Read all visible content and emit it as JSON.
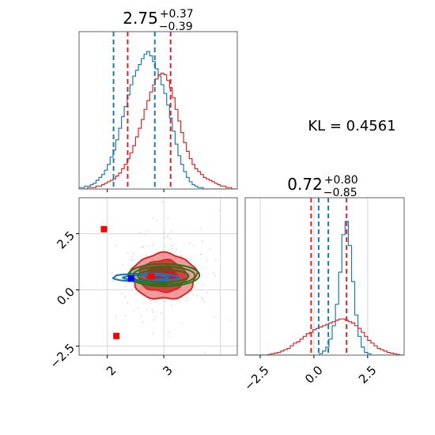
{
  "chart_data": [
    {
      "panel": "marginal-top",
      "type": "histogram",
      "title": {
        "value": "2.75",
        "upper": "+0.37",
        "lower": "−0.39"
      },
      "xlim": [
        1.5,
        4.3
      ],
      "colors": {
        "blue": "#1f77b4",
        "red": "#d62728"
      },
      "bins_x0": 1.5,
      "bin_width": 0.05,
      "series": [
        {
          "color": "blue",
          "counts": [
            0.01,
            0.01,
            0.02,
            0.02,
            0.03,
            0.04,
            0.06,
            0.08,
            0.1,
            0.13,
            0.17,
            0.22,
            0.27,
            0.34,
            0.42,
            0.5,
            0.57,
            0.65,
            0.72,
            0.78,
            0.82,
            0.86,
            0.9,
            0.93,
            0.95,
            0.92,
            0.88,
            0.83,
            0.78,
            0.72,
            0.66,
            0.58,
            0.49,
            0.4,
            0.31,
            0.23,
            0.17,
            0.12,
            0.08,
            0.05,
            0.03,
            0.02,
            0.01,
            0.01,
            0.0,
            0.0,
            0.0,
            0.0,
            0.0,
            0.0,
            0.0,
            0.0,
            0.0,
            0.0,
            0.0,
            0.0
          ]
        },
        {
          "color": "red",
          "counts": [
            0.0,
            0.0,
            0.0,
            0.01,
            0.01,
            0.01,
            0.02,
            0.02,
            0.03,
            0.04,
            0.05,
            0.06,
            0.07,
            0.09,
            0.11,
            0.14,
            0.17,
            0.21,
            0.25,
            0.3,
            0.36,
            0.42,
            0.48,
            0.55,
            0.61,
            0.67,
            0.72,
            0.76,
            0.79,
            0.8,
            0.79,
            0.75,
            0.7,
            0.63,
            0.55,
            0.47,
            0.39,
            0.32,
            0.26,
            0.21,
            0.17,
            0.14,
            0.12,
            0.1,
            0.08,
            0.07,
            0.06,
            0.05,
            0.04,
            0.03,
            0.02,
            0.02,
            0.01,
            0.01,
            0.0,
            0.0
          ]
        }
      ],
      "quantile_lines": [
        {
          "x": 2.11,
          "color": "blue"
        },
        {
          "x": 2.84,
          "color": "blue"
        },
        {
          "x": 2.36,
          "color": "red"
        },
        {
          "x": 3.12,
          "color": "red"
        }
      ]
    },
    {
      "panel": "marginal-right",
      "type": "histogram",
      "title": {
        "value": "0.72",
        "upper": "+0.80",
        "lower": "−0.85"
      },
      "xlim": [
        -3.2,
        4.2
      ],
      "ticks": [
        -2.5,
        0.0,
        2.5
      ],
      "tick_labels": [
        "−2.5",
        "0.0",
        "2.5"
      ],
      "bins_x0": -3.2,
      "bin_width": 0.15,
      "series": [
        {
          "color": "blue",
          "counts": [
            0,
            0,
            0,
            0,
            0,
            0,
            0,
            0,
            0,
            0,
            0,
            0,
            0,
            0,
            0,
            0,
            0,
            0,
            0,
            0,
            0,
            0,
            0,
            0.01,
            0.03,
            0.06,
            0.12,
            0.22,
            0.38,
            0.62,
            0.9,
            1.0,
            0.82,
            0.55,
            0.3,
            0.14,
            0.06,
            0.02,
            0.01,
            0,
            0,
            0,
            0,
            0,
            0,
            0,
            0,
            0,
            0,
            0
          ]
        },
        {
          "color": "red",
          "counts": [
            0,
            0,
            0,
            0,
            0,
            0,
            0,
            0.005,
            0.01,
            0.015,
            0.02,
            0.03,
            0.04,
            0.05,
            0.07,
            0.09,
            0.1,
            0.12,
            0.14,
            0.16,
            0.17,
            0.19,
            0.2,
            0.21,
            0.22,
            0.23,
            0.24,
            0.25,
            0.26,
            0.27,
            0.27,
            0.26,
            0.25,
            0.24,
            0.22,
            0.2,
            0.17,
            0.14,
            0.11,
            0.09,
            0.07,
            0.05,
            0.04,
            0.03,
            0.02,
            0.015,
            0.01,
            0.005,
            0,
            0
          ]
        }
      ],
      "quantile_lines": [
        {
          "x": 0.22,
          "color": "blue"
        },
        {
          "x": 0.67,
          "color": "blue"
        },
        {
          "x": -0.13,
          "color": "red"
        },
        {
          "x": 1.52,
          "color": "red"
        }
      ]
    },
    {
      "panel": "joint",
      "type": "contour",
      "xlim": [
        1.5,
        4.3
      ],
      "ylim": [
        -2.9,
        4.1
      ],
      "xticks": [
        2,
        3
      ],
      "xtick_labels": [
        "2",
        "3"
      ],
      "yticks": [
        -2.5,
        0.0,
        2.5
      ],
      "ytick_labels": [
        "−2.5",
        "0.0",
        "2.5"
      ],
      "grid_lines": {
        "x": [
          2.0,
          3.0,
          4.0
        ],
        "y": [
          2.5,
          0.0,
          -2.5
        ]
      },
      "red_contours": [
        {
          "cx": 3.0,
          "cy": 0.6,
          "rx": 0.57,
          "ry": 1.02,
          "fill": "#e84c4c"
        },
        {
          "cx": 2.98,
          "cy": 0.62,
          "rx": 0.42,
          "ry": 0.7,
          "fill": "#d62728"
        },
        {
          "cx": 2.96,
          "cy": 0.66,
          "rx": 0.27,
          "ry": 0.42,
          "fill": "#b8191b"
        }
      ],
      "blue_contours": [
        {
          "cx": 2.68,
          "cy": 0.55,
          "rx": 0.58,
          "ry": 0.18
        },
        {
          "cx": 2.68,
          "cy": 0.55,
          "rx": 0.4,
          "ry": 0.11
        }
      ],
      "green_ellipses": [
        {
          "cx": 3.0,
          "cy": 0.66,
          "rx": 0.63,
          "ry": 0.5
        },
        {
          "cx": 3.0,
          "cy": 0.64,
          "rx": 0.55,
          "ry": 0.4
        },
        {
          "cx": 2.99,
          "cy": 0.62,
          "rx": 0.45,
          "ry": 0.28
        }
      ],
      "red_markers": [
        {
          "x": 1.94,
          "y": 2.7
        },
        {
          "x": 2.16,
          "y": -2.05
        },
        {
          "x": 2.78,
          "y": 0.6
        }
      ],
      "blue_markers": [
        {
          "x": 2.42,
          "y": 0.5
        }
      ]
    }
  ],
  "annotation": {
    "kl_text": "KL = 0.4561"
  },
  "colors": {
    "blue": "#1f77b4",
    "red": "#d62728",
    "green": "#1a7a1a",
    "grid": "#d8d8d8",
    "axes": "#606060"
  }
}
